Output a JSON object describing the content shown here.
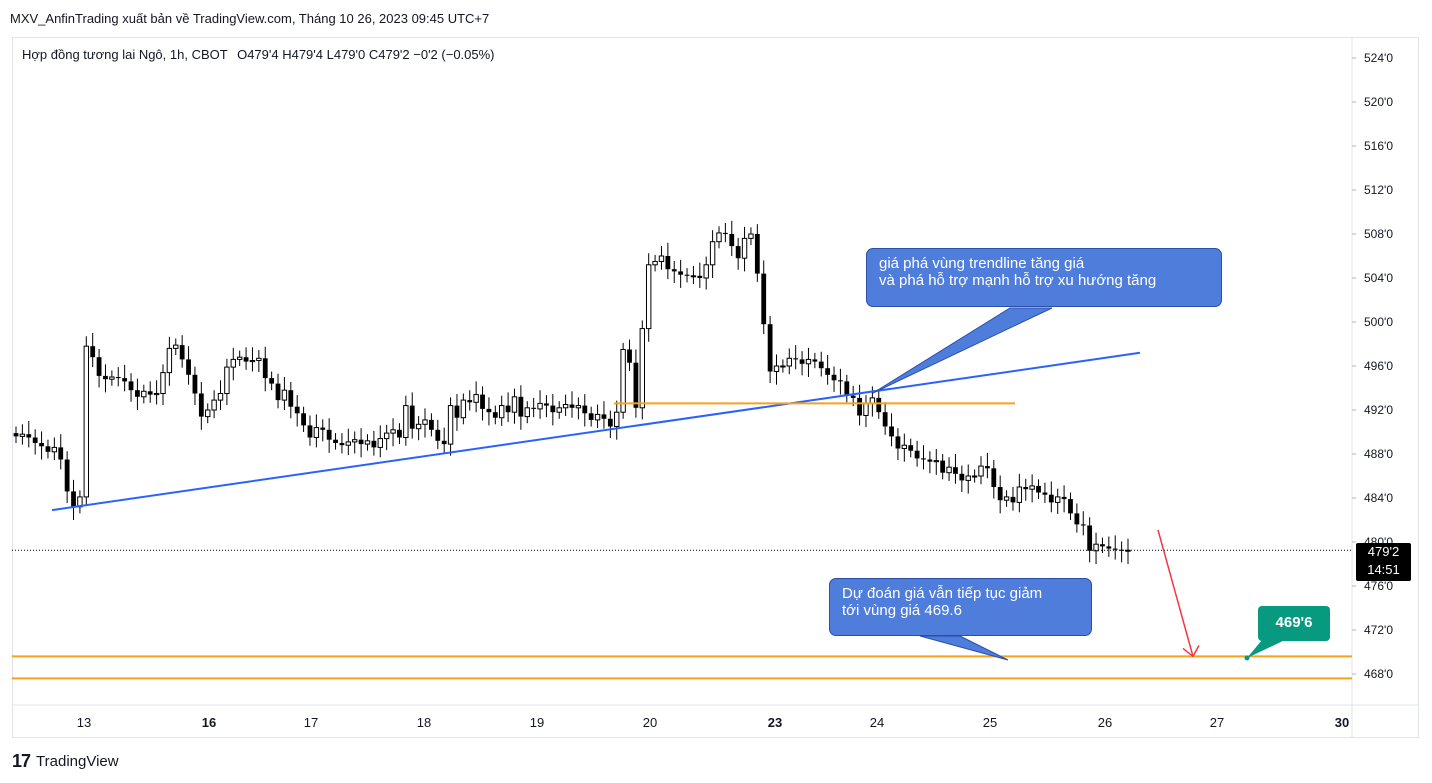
{
  "header": {
    "publish_line": "MXV_AnfinTrading xuất bản về TradingView.com, Tháng 10 26, 2023 09:45 UTC+7"
  },
  "legend": {
    "symbol": "Hợp đồng tương lai Ngô, 1h, CBOT",
    "ohlc": "O479'4  H479'4  L479'0  C479'2  −0'2 (−0.05%)"
  },
  "price_axis": {
    "ticks": [
      "524'0",
      "520'0",
      "516'0",
      "512'0",
      "508'0",
      "504'0",
      "500'0",
      "496'0",
      "492'0",
      "488'0",
      "484'0",
      "480'0",
      "476'0",
      "472'0",
      "468'0"
    ],
    "last_price": "479'2",
    "countdown": "14:51"
  },
  "time_axis": {
    "ticks": [
      {
        "label": "13",
        "bold": false
      },
      {
        "label": "16",
        "bold": true
      },
      {
        "label": "17",
        "bold": false
      },
      {
        "label": "18",
        "bold": false
      },
      {
        "label": "19",
        "bold": false
      },
      {
        "label": "20",
        "bold": false
      },
      {
        "label": "23",
        "bold": true
      },
      {
        "label": "24",
        "bold": false
      },
      {
        "label": "25",
        "bold": false
      },
      {
        "label": "26",
        "bold": false
      },
      {
        "label": "27",
        "bold": false
      },
      {
        "label": "30",
        "bold": true
      }
    ]
  },
  "annotations": {
    "callout_top": {
      "line1": "giá phá vùng trendline tăng giá",
      "line2": "và phá hỗ trợ mạnh hỗ trợ xu hướng tăng"
    },
    "callout_bottom": {
      "line1": "Dự đoán giá vẫn tiếp tục giảm",
      "line2": "tới vùng giá 469.6"
    },
    "target_badge": "469'6"
  },
  "colors": {
    "candle": "#000000",
    "trendline": "#2962ff",
    "support": "#f7a21b",
    "arrow": "#f23645",
    "callout_bg": "#4f7ddc",
    "badge_bg": "#089981"
  },
  "footer": {
    "brand": "TradingView"
  },
  "chart_data": {
    "type": "candlestick",
    "symbol": "Hợp đồng tương lai Ngô, 1h, CBOT",
    "ylim": [
      466,
      526
    ],
    "x_ticks": [
      "13",
      "16",
      "17",
      "18",
      "19",
      "20",
      "23",
      "24",
      "25",
      "26",
      "27",
      "30"
    ],
    "last_close": 479.25,
    "closes": [
      489.6,
      489.8,
      489.5,
      489.0,
      488.7,
      488.2,
      488.6,
      487.5,
      484.6,
      483.2,
      484.1,
      497.8,
      496.8,
      495.1,
      494.8,
      495.0,
      494.9,
      494.6,
      493.8,
      493.2,
      493.7,
      493.4,
      493.5,
      495.4,
      497.6,
      497.9,
      496.6,
      495.2,
      493.5,
      491.4,
      492.0,
      492.9,
      493.5,
      495.9,
      496.6,
      496.8,
      496.4,
      496.5,
      496.7,
      494.9,
      494.4,
      492.9,
      493.8,
      492.3,
      491.7,
      490.6,
      489.5,
      490.4,
      490.2,
      489.3,
      489.0,
      488.8,
      489.1,
      489.3,
      488.9,
      489.2,
      488.6,
      489.4,
      489.9,
      490.2,
      489.5,
      492.4,
      490.3,
      490.7,
      491.1,
      490.2,
      489.2,
      488.9,
      492.4,
      491.3,
      492.9,
      492.7,
      493.4,
      492.1,
      491.8,
      491.3,
      492.4,
      491.8,
      493.2,
      491.4,
      492.2,
      492.1,
      492.6,
      492.4,
      491.8,
      492.2,
      492.5,
      492.2,
      492.4,
      491.7,
      491.1,
      491.6,
      491.2,
      490.5,
      491.8,
      497.5,
      496.3,
      492.2,
      499.4,
      505.2,
      505.5,
      506.0,
      504.8,
      504.6,
      504.3,
      504.2,
      504.2,
      504.0,
      505.2,
      507.3,
      508.1,
      508.0,
      506.9,
      505.8,
      507.6,
      508.0,
      504.4,
      499.8,
      495.5,
      496.0,
      496.0,
      496.7,
      496.6,
      496.2,
      496.6,
      496.4,
      495.8,
      495.2,
      494.7,
      494.6,
      493.3,
      493.1,
      491.5,
      492.6,
      493.1,
      491.8,
      490.5,
      489.6,
      488.5,
      488.8,
      488.3,
      487.6,
      487.5,
      487.3,
      487.4,
      486.3,
      486.8,
      486.2,
      485.6,
      486.0,
      486.0,
      486.9,
      486.7,
      485.0,
      483.8,
      484.1,
      483.6,
      485.0,
      484.8,
      485.1,
      484.5,
      484.3,
      483.6,
      484.1,
      483.9,
      482.6,
      481.6,
      481.5,
      479.2,
      479.8,
      479.6,
      479.4,
      479.3,
      479.2,
      479.25
    ],
    "series": [
      {
        "type": "trendline",
        "points": [
          [
            "13",
            482.9
          ],
          [
            "26",
            497.2
          ]
        ]
      },
      {
        "type": "trendline",
        "points": [
          [
            "23",
            492.6
          ],
          [
            "25",
            492.6
          ]
        ]
      },
      {
        "type": "hline",
        "value": 469.6
      },
      {
        "type": "hline",
        "value": 467.6
      },
      {
        "type": "forecast-arrow",
        "points": [
          [
            "26",
            481.1
          ],
          [
            "27",
            469.6
          ]
        ]
      }
    ],
    "grid": false
  }
}
